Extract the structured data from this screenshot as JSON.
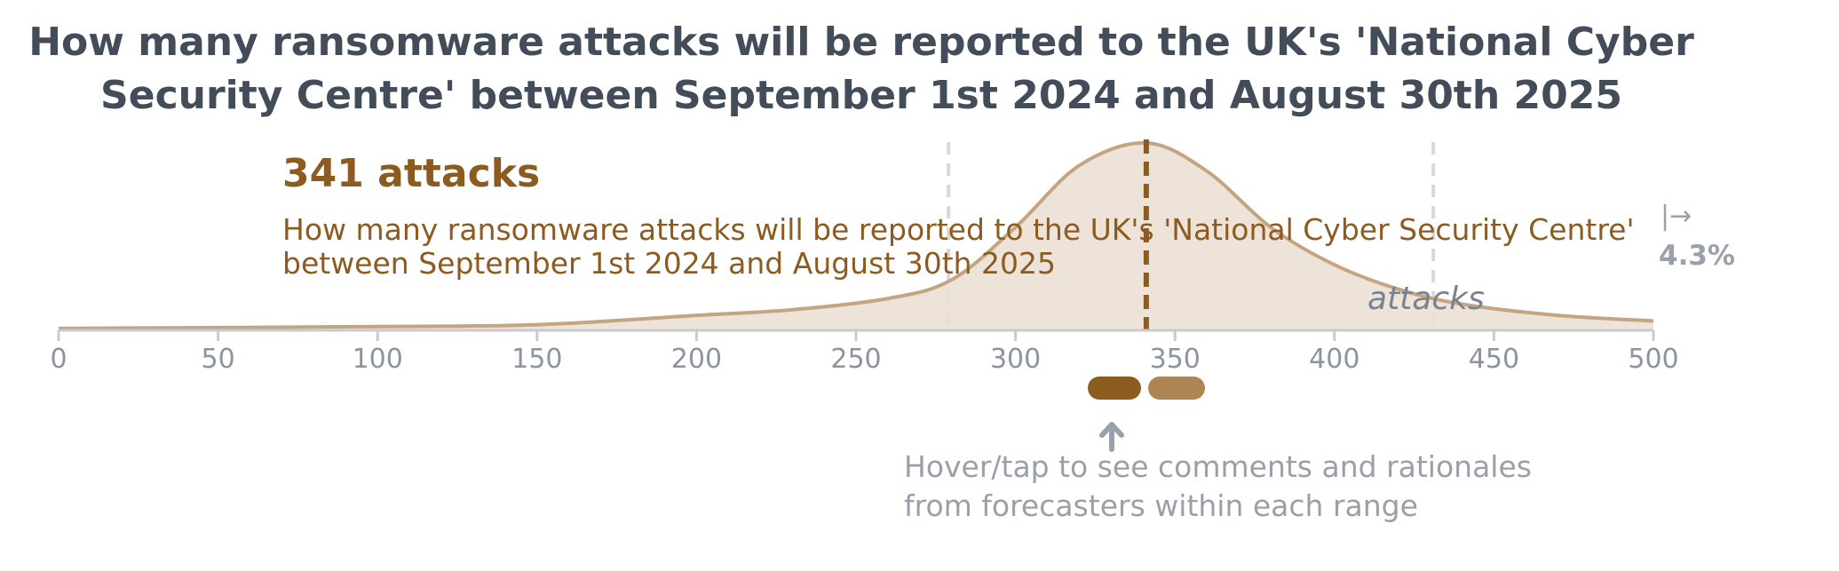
{
  "title": {
    "line1": "How many ransomware attacks will be reported to the UK's 'National Cyber",
    "line2": "Security Centre' between September 1st 2024 and August 30th 2025"
  },
  "forecast": {
    "value_label": "341 attacks",
    "question_line1": "How many ransomware attacks will be reported to the UK's 'National Cyber Security Centre'",
    "question_line2": "between September 1st 2024 and August 30th 2025",
    "unit": "attacks",
    "right_tail_arrow": "|→",
    "right_tail_pct": "4.3%"
  },
  "hint": {
    "line1": "Hover/tap to see comments and rationales",
    "line2": "from forecasters within each range"
  },
  "colors": {
    "median": "#8b5b20",
    "fill": "#ebe0d4",
    "stroke": "#c4a582",
    "quartile": "#d8d8d8",
    "axis": "#c8ccd2",
    "tick_text": "#8c94a0",
    "pill_dark": "#8b5b20",
    "pill_light": "#ad8554",
    "hint_arrow": "#9aa1ac"
  },
  "chart_data": {
    "type": "area",
    "xlim": [
      0,
      500
    ],
    "ticks": [
      0,
      50,
      100,
      150,
      200,
      250,
      300,
      350,
      400,
      450,
      500
    ],
    "tick_labels": [
      "0",
      "50",
      "100",
      "150",
      "200",
      "250",
      "300",
      "350",
      "400",
      "450",
      "500"
    ],
    "median": 341,
    "lower_quartile": 279,
    "upper_quartile": 431,
    "right_tail_probability": "4.3%",
    "density_relative": {
      "x": [
        0,
        100,
        150,
        200,
        230,
        260,
        280,
        300,
        320,
        341,
        360,
        380,
        400,
        420,
        440,
        470,
        500
      ],
      "y": [
        0.01,
        0.02,
        0.03,
        0.08,
        0.11,
        0.17,
        0.27,
        0.55,
        0.88,
        1.0,
        0.85,
        0.55,
        0.35,
        0.22,
        0.14,
        0.08,
        0.05
      ]
    },
    "comment_ranges": [
      {
        "from": 322,
        "to": 340,
        "shade": "dark"
      },
      {
        "from": 341,
        "to": 360,
        "shade": "light"
      }
    ]
  }
}
